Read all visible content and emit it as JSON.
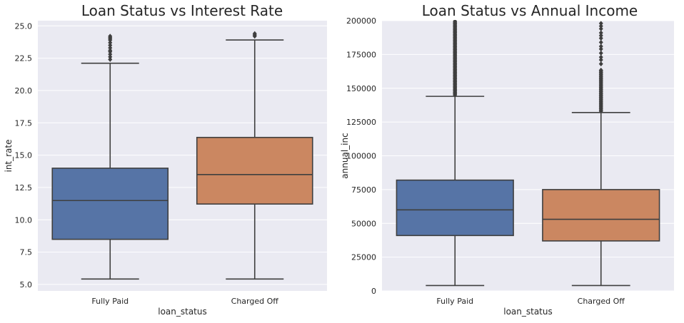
{
  "chart_data": [
    {
      "type": "box",
      "title": "Loan Status vs Interest Rate",
      "xlabel": "loan_status",
      "ylabel": "int_rate",
      "categories": [
        "Fully Paid",
        "Charged Off"
      ],
      "ylim": [
        4.5,
        25.4
      ],
      "yticks": [
        5.0,
        7.5,
        10.0,
        12.5,
        15.0,
        17.5,
        20.0,
        22.5,
        25.0
      ],
      "ytick_labels": [
        "5.0",
        "7.5",
        "10.0",
        "12.5",
        "15.0",
        "17.5",
        "20.0",
        "22.5",
        "25.0"
      ],
      "grid": true,
      "boxes": [
        {
          "category": "Fully Paid",
          "color": "#5674a6",
          "whisker_low": 5.42,
          "q1": 8.49,
          "median": 11.49,
          "q3": 13.99,
          "whisker_high": 22.11,
          "outliers": [
            22.4,
            22.6,
            22.8,
            23.0,
            23.1,
            23.3,
            23.5,
            23.7,
            23.9,
            24.0,
            24.1,
            24.2
          ]
        },
        {
          "category": "Charged Off",
          "color": "#cb8761",
          "whisker_low": 5.42,
          "q1": 11.22,
          "median": 13.5,
          "q3": 16.37,
          "whisker_high": 23.91,
          "outliers": [
            24.2,
            24.3,
            24.4
          ]
        }
      ]
    },
    {
      "type": "box",
      "title": "Loan Status vs Annual Income",
      "xlabel": "loan_status",
      "ylabel": "annual_inc",
      "categories": [
        "Fully Paid",
        "Charged Off"
      ],
      "ylim": [
        0,
        200000
      ],
      "yticks": [
        0,
        25000,
        50000,
        75000,
        100000,
        125000,
        150000,
        175000,
        200000
      ],
      "ytick_labels": [
        "0",
        "25000",
        "50000",
        "75000",
        "100000",
        "125000",
        "150000",
        "175000",
        "200000"
      ],
      "grid": true,
      "boxes": [
        {
          "category": "Fully Paid",
          "color": "#5674a6",
          "whisker_low": 4000,
          "q1": 41000,
          "median": 60000,
          "q3": 82000,
          "whisker_high": 144000,
          "outlier_range": [
            145000,
            200000
          ],
          "outlier_step": 700
        },
        {
          "category": "Charged Off",
          "color": "#cb8761",
          "whisker_low": 4000,
          "q1": 37000,
          "median": 53000,
          "q3": 75000,
          "whisker_high": 132000,
          "outlier_range": [
            133000,
            164000
          ],
          "outlier_step": 800,
          "outliers": [
            168000,
            171000,
            173000,
            176000,
            179000,
            181000,
            184000,
            187000,
            189000,
            191000,
            194000,
            196000,
            198000
          ]
        }
      ]
    }
  ]
}
